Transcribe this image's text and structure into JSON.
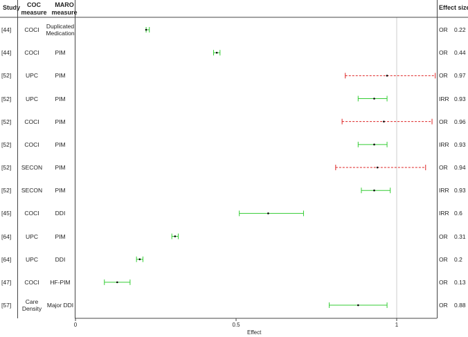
{
  "headers": {
    "study": "Study",
    "coc": "COC measure",
    "maro": "MARO measure",
    "effect_size": "Effect size"
  },
  "rows": [
    {
      "study": "[44]",
      "coc": "COCI",
      "maro": "Duplicated Medication",
      "metric": "OR",
      "effect": "0.22"
    },
    {
      "study": "[44]",
      "coc": "COCI",
      "maro": "PIM",
      "metric": "OR",
      "effect": "0.44"
    },
    {
      "study": "[52]",
      "coc": "UPC",
      "maro": "PIM",
      "metric": "OR",
      "effect": "0.97"
    },
    {
      "study": "[52]",
      "coc": "UPC",
      "maro": "PIM",
      "metric": "IRR",
      "effect": "0.93"
    },
    {
      "study": "[52]",
      "coc": "COCI",
      "maro": "PIM",
      "metric": "OR",
      "effect": "0.96"
    },
    {
      "study": "[52]",
      "coc": "COCI",
      "maro": "PIM",
      "metric": "IRR",
      "effect": "0.93"
    },
    {
      "study": "[52]",
      "coc": "SECON",
      "maro": "PIM",
      "metric": "OR",
      "effect": "0.94"
    },
    {
      "study": "[52]",
      "coc": "SECON",
      "maro": "PIM",
      "metric": "IRR",
      "effect": "0.93"
    },
    {
      "study": "[45]",
      "coc": "COCI",
      "maro": "DDI",
      "metric": "IRR",
      "effect": "0.6"
    },
    {
      "study": "[64]",
      "coc": "UPC",
      "maro": "PIM",
      "metric": "OR",
      "effect": "0.31"
    },
    {
      "study": "[64]",
      "coc": "UPC",
      "maro": "DDI",
      "metric": "OR",
      "effect": "0.2"
    },
    {
      "study": "[47]",
      "coc": "COCI",
      "maro": "HF-PIM",
      "metric": "OR",
      "effect": "0.13"
    },
    {
      "study": "[57]",
      "coc": "Care Density",
      "maro": "Major DDI",
      "metric": "OR",
      "effect": "0.88"
    }
  ],
  "chart_data": {
    "type": "forest",
    "xlabel": "Effect",
    "xlim": [
      0,
      1.12
    ],
    "xticks": [
      0,
      0.5,
      1
    ],
    "reference_line": 1,
    "colors": {
      "significant": "#33cc33",
      "nonsignificant": "#dd2222",
      "point": "#000000"
    },
    "points": [
      {
        "est": 0.22,
        "lo": 0.22,
        "hi": 0.23,
        "significant": true
      },
      {
        "est": 0.44,
        "lo": 0.43,
        "hi": 0.45,
        "significant": true
      },
      {
        "est": 0.97,
        "lo": 0.84,
        "hi": 1.12,
        "significant": false
      },
      {
        "est": 0.93,
        "lo": 0.88,
        "hi": 0.97,
        "significant": true
      },
      {
        "est": 0.96,
        "lo": 0.83,
        "hi": 1.11,
        "significant": false
      },
      {
        "est": 0.93,
        "lo": 0.88,
        "hi": 0.97,
        "significant": true
      },
      {
        "est": 0.94,
        "lo": 0.81,
        "hi": 1.09,
        "significant": false
      },
      {
        "est": 0.93,
        "lo": 0.89,
        "hi": 0.98,
        "significant": true
      },
      {
        "est": 0.6,
        "lo": 0.51,
        "hi": 0.71,
        "significant": true
      },
      {
        "est": 0.31,
        "lo": 0.3,
        "hi": 0.32,
        "significant": true
      },
      {
        "est": 0.2,
        "lo": 0.19,
        "hi": 0.21,
        "significant": true
      },
      {
        "est": 0.13,
        "lo": 0.09,
        "hi": 0.17,
        "significant": true
      },
      {
        "est": 0.88,
        "lo": 0.79,
        "hi": 0.97,
        "significant": true
      }
    ]
  }
}
